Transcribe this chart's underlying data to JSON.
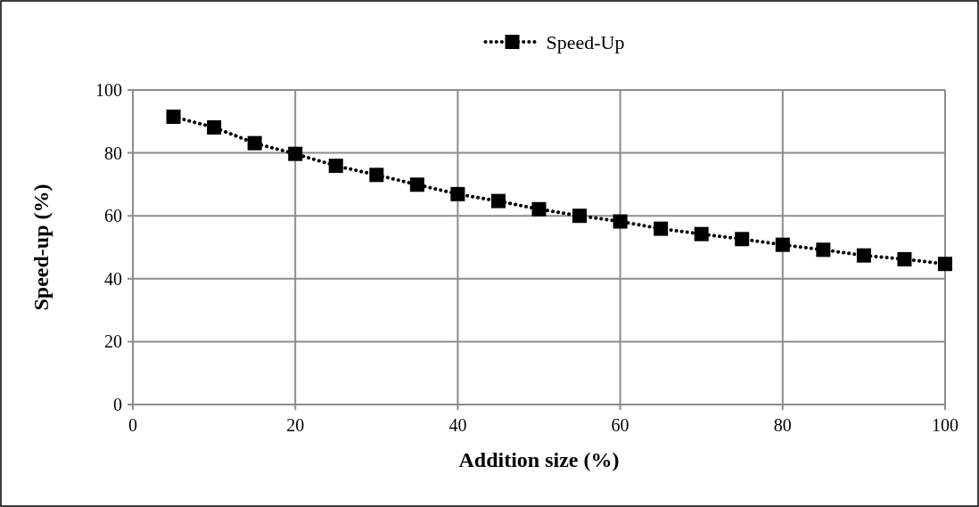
{
  "chart_data": {
    "type": "line",
    "xlabel": "Addition size (%)",
    "ylabel": "Speed-up (%)",
    "x": [
      5,
      10,
      15,
      20,
      25,
      30,
      35,
      40,
      45,
      50,
      55,
      60,
      65,
      70,
      75,
      80,
      85,
      90,
      95,
      100
    ],
    "series": [
      {
        "name": "Speed-Up",
        "color": "#000000",
        "values": [
          91.5,
          88.1,
          83.1,
          79.7,
          75.9,
          73.0,
          69.9,
          66.9,
          64.7,
          62.1,
          60.0,
          58.2,
          55.9,
          54.2,
          52.6,
          50.8,
          49.2,
          47.4,
          46.2,
          44.7
        ]
      }
    ],
    "xlim": [
      0,
      100
    ],
    "xticks": [
      0,
      20,
      40,
      60,
      80,
      100
    ],
    "ylim": [
      0,
      100
    ],
    "yticks": [
      0,
      20,
      40,
      60,
      80,
      100
    ],
    "grid": true,
    "legend": "top",
    "marker": "square",
    "line_style": "dotted"
  }
}
